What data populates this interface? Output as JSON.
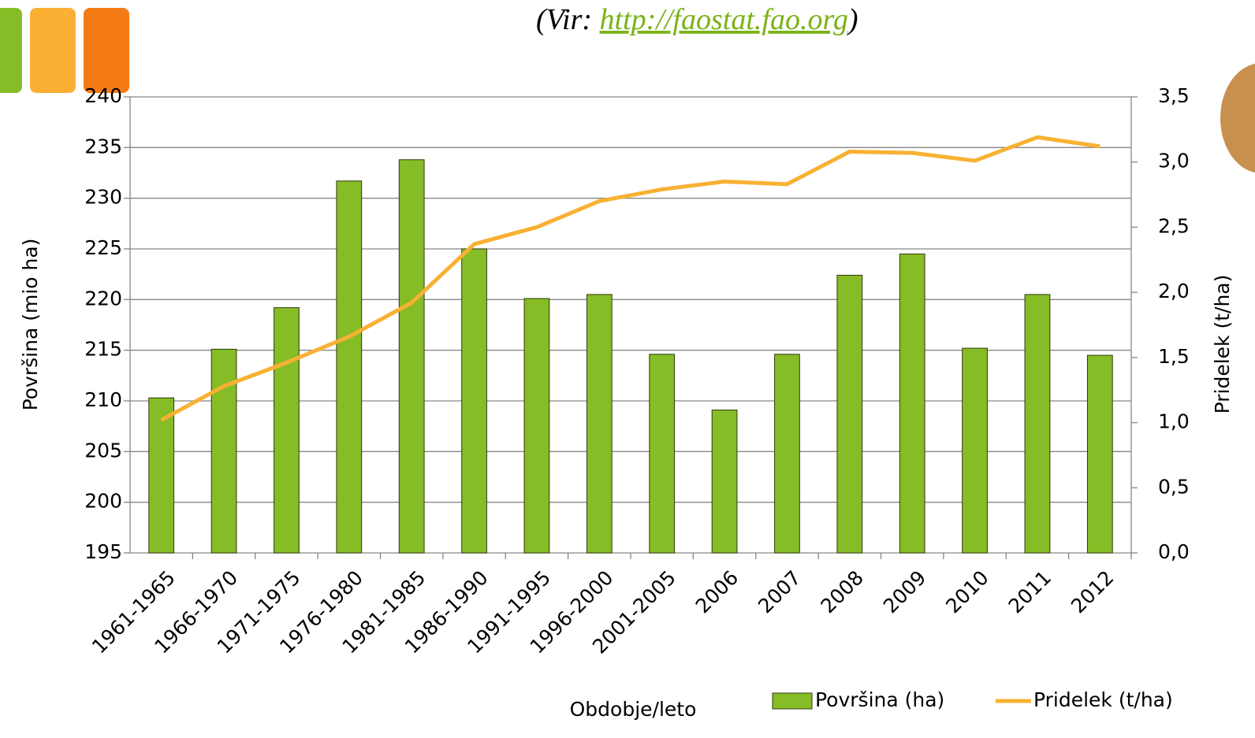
{
  "chart_data": {
    "type": "bar-line",
    "source": {
      "open": "(Vir: ",
      "link": "http://faostat.fao.org",
      "close": ")"
    },
    "x_label": "Obdobje/leto",
    "y_label": "Površina (mio ha)",
    "y2_label": "Pridelek (t/ha)",
    "categories": [
      "1961-1965",
      "1966-1970",
      "1971-1975",
      "1976-1980",
      "1981-1985",
      "1986-1990",
      "1991-1995",
      "1996-2000",
      "2001-2005",
      "2006",
      "2007",
      "2008",
      "2009",
      "2010",
      "2011",
      "2012"
    ],
    "series": [
      {
        "name": "Površina (ha)",
        "type": "bar",
        "color": "#86bc25",
        "values": [
          210.3,
          215.1,
          219.2,
          231.7,
          233.8,
          225.0,
          220.1,
          220.5,
          214.6,
          209.1,
          214.6,
          222.4,
          224.5,
          215.2,
          220.5,
          214.5
        ]
      },
      {
        "name": "Pridelek (t/ha)",
        "type": "line",
        "axis": "y2",
        "color": "#f8b133",
        "values": [
          1.02,
          1.28,
          1.46,
          1.66,
          1.92,
          2.37,
          2.5,
          2.7,
          2.79,
          2.85,
          2.83,
          3.08,
          3.07,
          3.01,
          3.19,
          3.12
        ]
      }
    ],
    "ylim": [
      195,
      240
    ],
    "yticks": [
      195,
      200,
      205,
      210,
      215,
      220,
      225,
      230,
      235,
      240
    ],
    "y2lim": [
      0,
      3.5
    ],
    "y2ticks": [
      {
        "value": 0,
        "label": "0,0"
      },
      {
        "value": 0.5,
        "label": "0,5"
      },
      {
        "value": 1,
        "label": "1,0"
      },
      {
        "value": 1.5,
        "label": "1,5"
      },
      {
        "value": 2,
        "label": "2,0"
      },
      {
        "value": 2.5,
        "label": "2,5"
      },
      {
        "value": 3,
        "label": "3,0"
      },
      {
        "value": 3.5,
        "label": "3,5"
      }
    ],
    "grid": true,
    "legend": "bottom"
  }
}
